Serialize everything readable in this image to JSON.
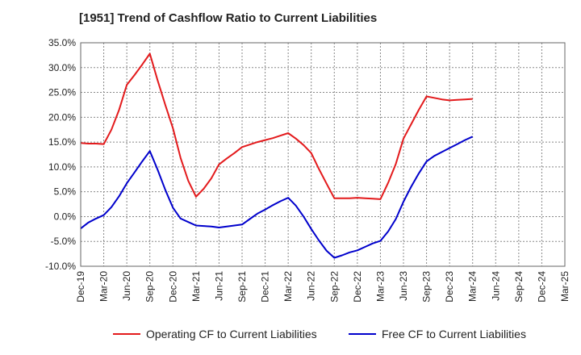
{
  "chart_data": {
    "type": "line",
    "title": "[1951]  Trend of Cashflow Ratio to Current Liabilities",
    "xlabel": "",
    "ylabel": "",
    "grid": true,
    "legend": "bottom",
    "ylim": [
      -10,
      35
    ],
    "yticks": [
      -10,
      -5,
      0,
      5,
      10,
      15,
      20,
      25,
      30,
      35
    ],
    "ytick_labels": [
      "-10.0%",
      "-5.0%",
      "0.0%",
      "5.0%",
      "10.0%",
      "15.0%",
      "20.0%",
      "25.0%",
      "30.0%",
      "35.0%"
    ],
    "x_ticks": [
      "Dec-19",
      "Mar-20",
      "Jun-20",
      "Sep-20",
      "Dec-20",
      "Mar-21",
      "Jun-21",
      "Sep-21",
      "Dec-21",
      "Mar-22",
      "Jun-22",
      "Sep-22",
      "Dec-22",
      "Mar-23",
      "Jun-23",
      "Sep-23",
      "Dec-23",
      "Mar-24",
      "Jun-24",
      "Sep-24",
      "Dec-24",
      "Mar-25"
    ],
    "series": [
      {
        "name": "Operating CF to Current Liabilities",
        "color": "#e31a1c",
        "values": [
          [
            "Dec-19",
            14.8
          ],
          [
            "Jan-20",
            14.7
          ],
          [
            "Feb-20",
            14.7
          ],
          [
            "Mar-20",
            14.6
          ],
          [
            "Apr-20",
            17.5
          ],
          [
            "May-20",
            21.5
          ],
          [
            "Jun-20",
            26.5
          ],
          [
            "Jul-20",
            28.5
          ],
          [
            "Aug-20",
            30.6
          ],
          [
            "Sep-20",
            32.8
          ],
          [
            "Oct-20",
            27.5
          ],
          [
            "Nov-20",
            22.5
          ],
          [
            "Dec-20",
            17.8
          ],
          [
            "Jan-21",
            11.8
          ],
          [
            "Feb-21",
            7.2
          ],
          [
            "Mar-21",
            4.0
          ],
          [
            "Apr-21",
            5.6
          ],
          [
            "May-21",
            7.7
          ],
          [
            "Jun-21",
            10.5
          ],
          [
            "Jul-21",
            11.7
          ],
          [
            "Aug-21",
            12.8
          ],
          [
            "Sep-21",
            14.0
          ],
          [
            "Oct-21",
            14.5
          ],
          [
            "Nov-21",
            15.0
          ],
          [
            "Dec-21",
            15.4
          ],
          [
            "Jan-22",
            15.8
          ],
          [
            "Feb-22",
            16.3
          ],
          [
            "Mar-22",
            16.8
          ],
          [
            "Apr-22",
            15.7
          ],
          [
            "May-22",
            14.4
          ],
          [
            "Jun-22",
            12.8
          ],
          [
            "Jul-22",
            9.6
          ],
          [
            "Aug-22",
            6.6
          ],
          [
            "Sep-22",
            3.7
          ],
          [
            "Oct-22",
            3.7
          ],
          [
            "Nov-22",
            3.7
          ],
          [
            "Dec-22",
            3.8
          ],
          [
            "Jan-23",
            3.7
          ],
          [
            "Feb-23",
            3.6
          ],
          [
            "Mar-23",
            3.5
          ],
          [
            "Apr-23",
            6.8
          ],
          [
            "May-23",
            10.6
          ],
          [
            "Jun-23",
            15.7
          ],
          [
            "Jul-23",
            18.6
          ],
          [
            "Aug-23",
            21.5
          ],
          [
            "Sep-23",
            24.2
          ],
          [
            "Oct-23",
            23.9
          ],
          [
            "Nov-23",
            23.6
          ],
          [
            "Dec-23",
            23.4
          ],
          [
            "Jan-24",
            23.5
          ],
          [
            "Feb-24",
            23.6
          ],
          [
            "Mar-24",
            23.7
          ]
        ]
      },
      {
        "name": "Free CF to Current Liabilities",
        "color": "#0000cc",
        "values": [
          [
            "Dec-19",
            -2.4
          ],
          [
            "Jan-20",
            -1.2
          ],
          [
            "Feb-20",
            -0.4
          ],
          [
            "Mar-20",
            0.3
          ],
          [
            "Apr-20",
            1.9
          ],
          [
            "May-20",
            4.1
          ],
          [
            "Jun-20",
            6.7
          ],
          [
            "Jul-20",
            8.9
          ],
          [
            "Aug-20",
            11.1
          ],
          [
            "Sep-20",
            13.2
          ],
          [
            "Oct-20",
            9.5
          ],
          [
            "Nov-20",
            5.4
          ],
          [
            "Dec-20",
            1.8
          ],
          [
            "Jan-21",
            -0.4
          ],
          [
            "Feb-21",
            -1.1
          ],
          [
            "Mar-21",
            -1.8
          ],
          [
            "Apr-21",
            -1.9
          ],
          [
            "May-21",
            -2.0
          ],
          [
            "Jun-21",
            -2.2
          ],
          [
            "Jul-21",
            -2.0
          ],
          [
            "Aug-21",
            -1.8
          ],
          [
            "Sep-21",
            -1.6
          ],
          [
            "Oct-21",
            -0.5
          ],
          [
            "Nov-21",
            0.6
          ],
          [
            "Dec-21",
            1.4
          ],
          [
            "Jan-22",
            2.3
          ],
          [
            "Feb-22",
            3.1
          ],
          [
            "Mar-22",
            3.8
          ],
          [
            "Apr-22",
            2.2
          ],
          [
            "May-22",
            0.0
          ],
          [
            "Jun-22",
            -2.5
          ],
          [
            "Jul-22",
            -4.8
          ],
          [
            "Aug-22",
            -6.9
          ],
          [
            "Sep-22",
            -8.3
          ],
          [
            "Oct-22",
            -7.8
          ],
          [
            "Nov-22",
            -7.2
          ],
          [
            "Dec-22",
            -6.8
          ],
          [
            "Jan-23",
            -6.1
          ],
          [
            "Feb-23",
            -5.4
          ],
          [
            "Mar-23",
            -4.9
          ],
          [
            "Apr-23",
            -3.0
          ],
          [
            "May-23",
            -0.5
          ],
          [
            "Jun-23",
            3.0
          ],
          [
            "Jul-23",
            6.0
          ],
          [
            "Aug-23",
            8.7
          ],
          [
            "Sep-23",
            11.1
          ],
          [
            "Oct-23",
            12.2
          ],
          [
            "Nov-23",
            13.0
          ],
          [
            "Dec-23",
            13.8
          ],
          [
            "Jan-24",
            14.6
          ],
          [
            "Feb-24",
            15.4
          ],
          [
            "Mar-24",
            16.1
          ]
        ]
      }
    ]
  }
}
